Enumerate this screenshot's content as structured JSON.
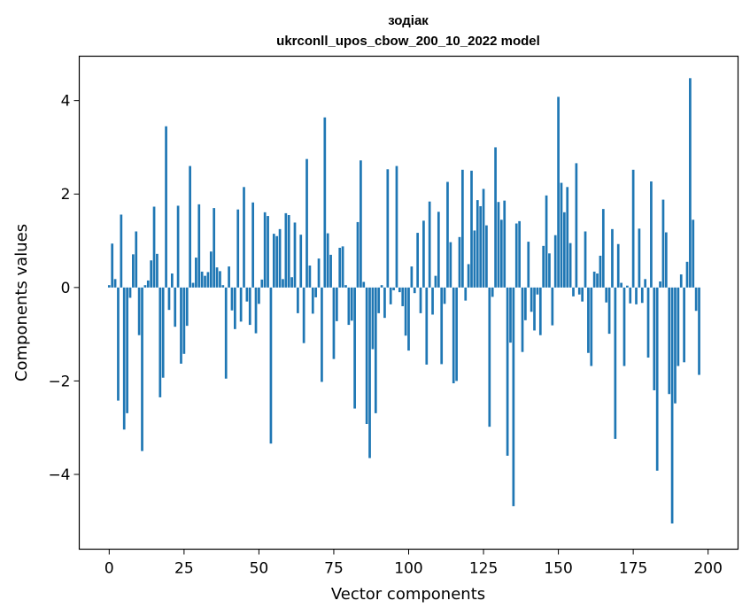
{
  "chart_data": {
    "type": "bar",
    "title_line1": "зодіак",
    "title_line2": "ukrconll_upos_cbow_200_10_2022 model",
    "xlabel": "Vector components",
    "ylabel": "Components values",
    "xlim": [
      -10,
      210
    ],
    "ylim": [
      -5.6,
      4.95
    ],
    "x_ticks": [
      0,
      25,
      50,
      75,
      100,
      125,
      150,
      175,
      200
    ],
    "x_tick_labels": [
      "0",
      "25",
      "50",
      "75",
      "100",
      "125",
      "150",
      "175",
      "200"
    ],
    "y_ticks": [
      -4,
      -2,
      0,
      2,
      4
    ],
    "y_tick_labels": [
      "−4",
      "−2",
      "0",
      "2",
      "4"
    ],
    "bar_color": "#1f77b4",
    "grid": false,
    "values": [
      0.05,
      0.94,
      0.18,
      -2.42,
      1.56,
      -3.04,
      -2.69,
      -0.22,
      0.71,
      1.2,
      -1.02,
      -3.5,
      0.05,
      0.15,
      0.58,
      1.73,
      0.72,
      -2.35,
      -1.93,
      3.45,
      -0.48,
      0.3,
      -0.84,
      1.75,
      -1.63,
      -1.42,
      -0.82,
      2.6,
      0.1,
      0.64,
      1.78,
      0.34,
      0.25,
      0.33,
      0.77,
      1.7,
      0.43,
      0.35,
      0.05,
      -1.95,
      0.45,
      -0.49,
      -0.89,
      1.67,
      -0.73,
      2.15,
      -0.3,
      -0.8,
      1.82,
      -0.98,
      -0.35,
      0.17,
      1.61,
      1.53,
      -3.34,
      1.15,
      1.1,
      1.25,
      0.18,
      1.59,
      1.55,
      0.22,
      1.39,
      -0.55,
      1.13,
      -1.19,
      2.75,
      0.47,
      -0.56,
      -0.21,
      0.62,
      -2.02,
      3.64,
      1.16,
      0.7,
      -1.53,
      -0.72,
      0.85,
      0.88,
      0.05,
      -0.8,
      -0.71,
      -2.59,
      1.4,
      2.72,
      0.12,
      -2.92,
      -3.65,
      -1.32,
      -2.69,
      -0.55,
      0.05,
      -0.65,
      2.53,
      -0.36,
      -0.06,
      2.6,
      -0.1,
      -0.4,
      -1.03,
      -1.35,
      0.45,
      -0.12,
      1.17,
      -0.55,
      1.43,
      -1.65,
      1.84,
      -0.58,
      0.25,
      1.62,
      -1.64,
      -0.35,
      2.26,
      0.97,
      -2.05,
      -2.0,
      1.08,
      2.52,
      -0.28,
      0.5,
      2.5,
      1.22,
      1.87,
      1.74,
      2.11,
      1.33,
      -2.98,
      -0.2,
      3.0,
      1.83,
      1.45,
      1.86,
      -3.6,
      -1.18,
      -4.68,
      1.37,
      1.42,
      -1.38,
      -0.7,
      0.98,
      -0.52,
      -0.92,
      -0.15,
      -1.02,
      0.89,
      1.97,
      0.73,
      -0.81,
      1.12,
      4.08,
      2.24,
      1.61,
      2.15,
      0.95,
      -0.19,
      2.66,
      -0.15,
      -0.3,
      1.2,
      -1.4,
      -1.68,
      0.34,
      0.3,
      0.68,
      1.68,
      -0.32,
      -0.99,
      1.25,
      -3.24,
      0.93,
      0.1,
      -1.68,
      0.04,
      -0.34,
      2.52,
      -0.36,
      1.26,
      -0.33,
      0.18,
      -1.5,
      2.27,
      -2.2,
      -3.92,
      0.13,
      1.88,
      1.18,
      -2.28,
      -5.05,
      -2.48,
      -1.68,
      0.28,
      -1.6,
      0.55,
      4.48,
      1.45,
      -0.5,
      -1.87
    ]
  }
}
